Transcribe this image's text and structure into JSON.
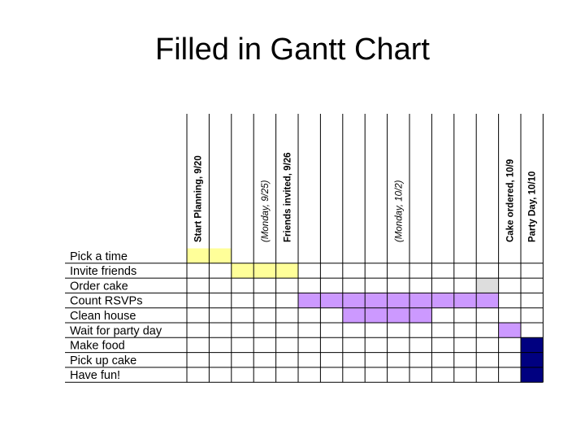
{
  "slide": {
    "title": "Filled in Gantt Chart"
  },
  "colors": {
    "yellow": "#ffff99",
    "purple": "#cc99ff",
    "gray": "#dddddd",
    "navy": "#000080"
  },
  "chart_data": {
    "type": "table",
    "title": "Filled in Gantt Chart",
    "tasks": [
      "Pick a time",
      "Invite friends",
      "Order cake",
      "Count RSVPs",
      "Clean house",
      "Wait for party day",
      "Make food",
      "Pick up cake",
      "Have fun!"
    ],
    "milestones": [
      {
        "column": 1,
        "label": "Start Planning, 9/20",
        "italic": false
      },
      {
        "column": 4,
        "label": "(Monday, 9/25)",
        "italic": true
      },
      {
        "column": 5,
        "label": "Friends invited, 9/26",
        "italic": false
      },
      {
        "column": 10,
        "label": "(Monday, 10/2)",
        "italic": true
      },
      {
        "column": 15,
        "label": "Cake ordered, 10/9",
        "italic": false
      },
      {
        "column": 16,
        "label": "Party Day, 10/10",
        "italic": false
      }
    ],
    "column_count": 16,
    "cells": [
      {
        "task": 0,
        "start": 1,
        "end": 2,
        "color": "yellow"
      },
      {
        "task": 1,
        "start": 3,
        "end": 5,
        "color": "yellow"
      },
      {
        "task": 2,
        "start": 14,
        "end": 14,
        "color": "gray"
      },
      {
        "task": 3,
        "start": 6,
        "end": 14,
        "color": "purple"
      },
      {
        "task": 4,
        "start": 8,
        "end": 11,
        "color": "purple"
      },
      {
        "task": 5,
        "start": 15,
        "end": 15,
        "color": "purple"
      },
      {
        "task": 6,
        "start": 16,
        "end": 16,
        "color": "navy"
      },
      {
        "task": 7,
        "start": 16,
        "end": 16,
        "color": "navy"
      },
      {
        "task": 8,
        "start": 16,
        "end": 16,
        "color": "navy"
      }
    ]
  }
}
